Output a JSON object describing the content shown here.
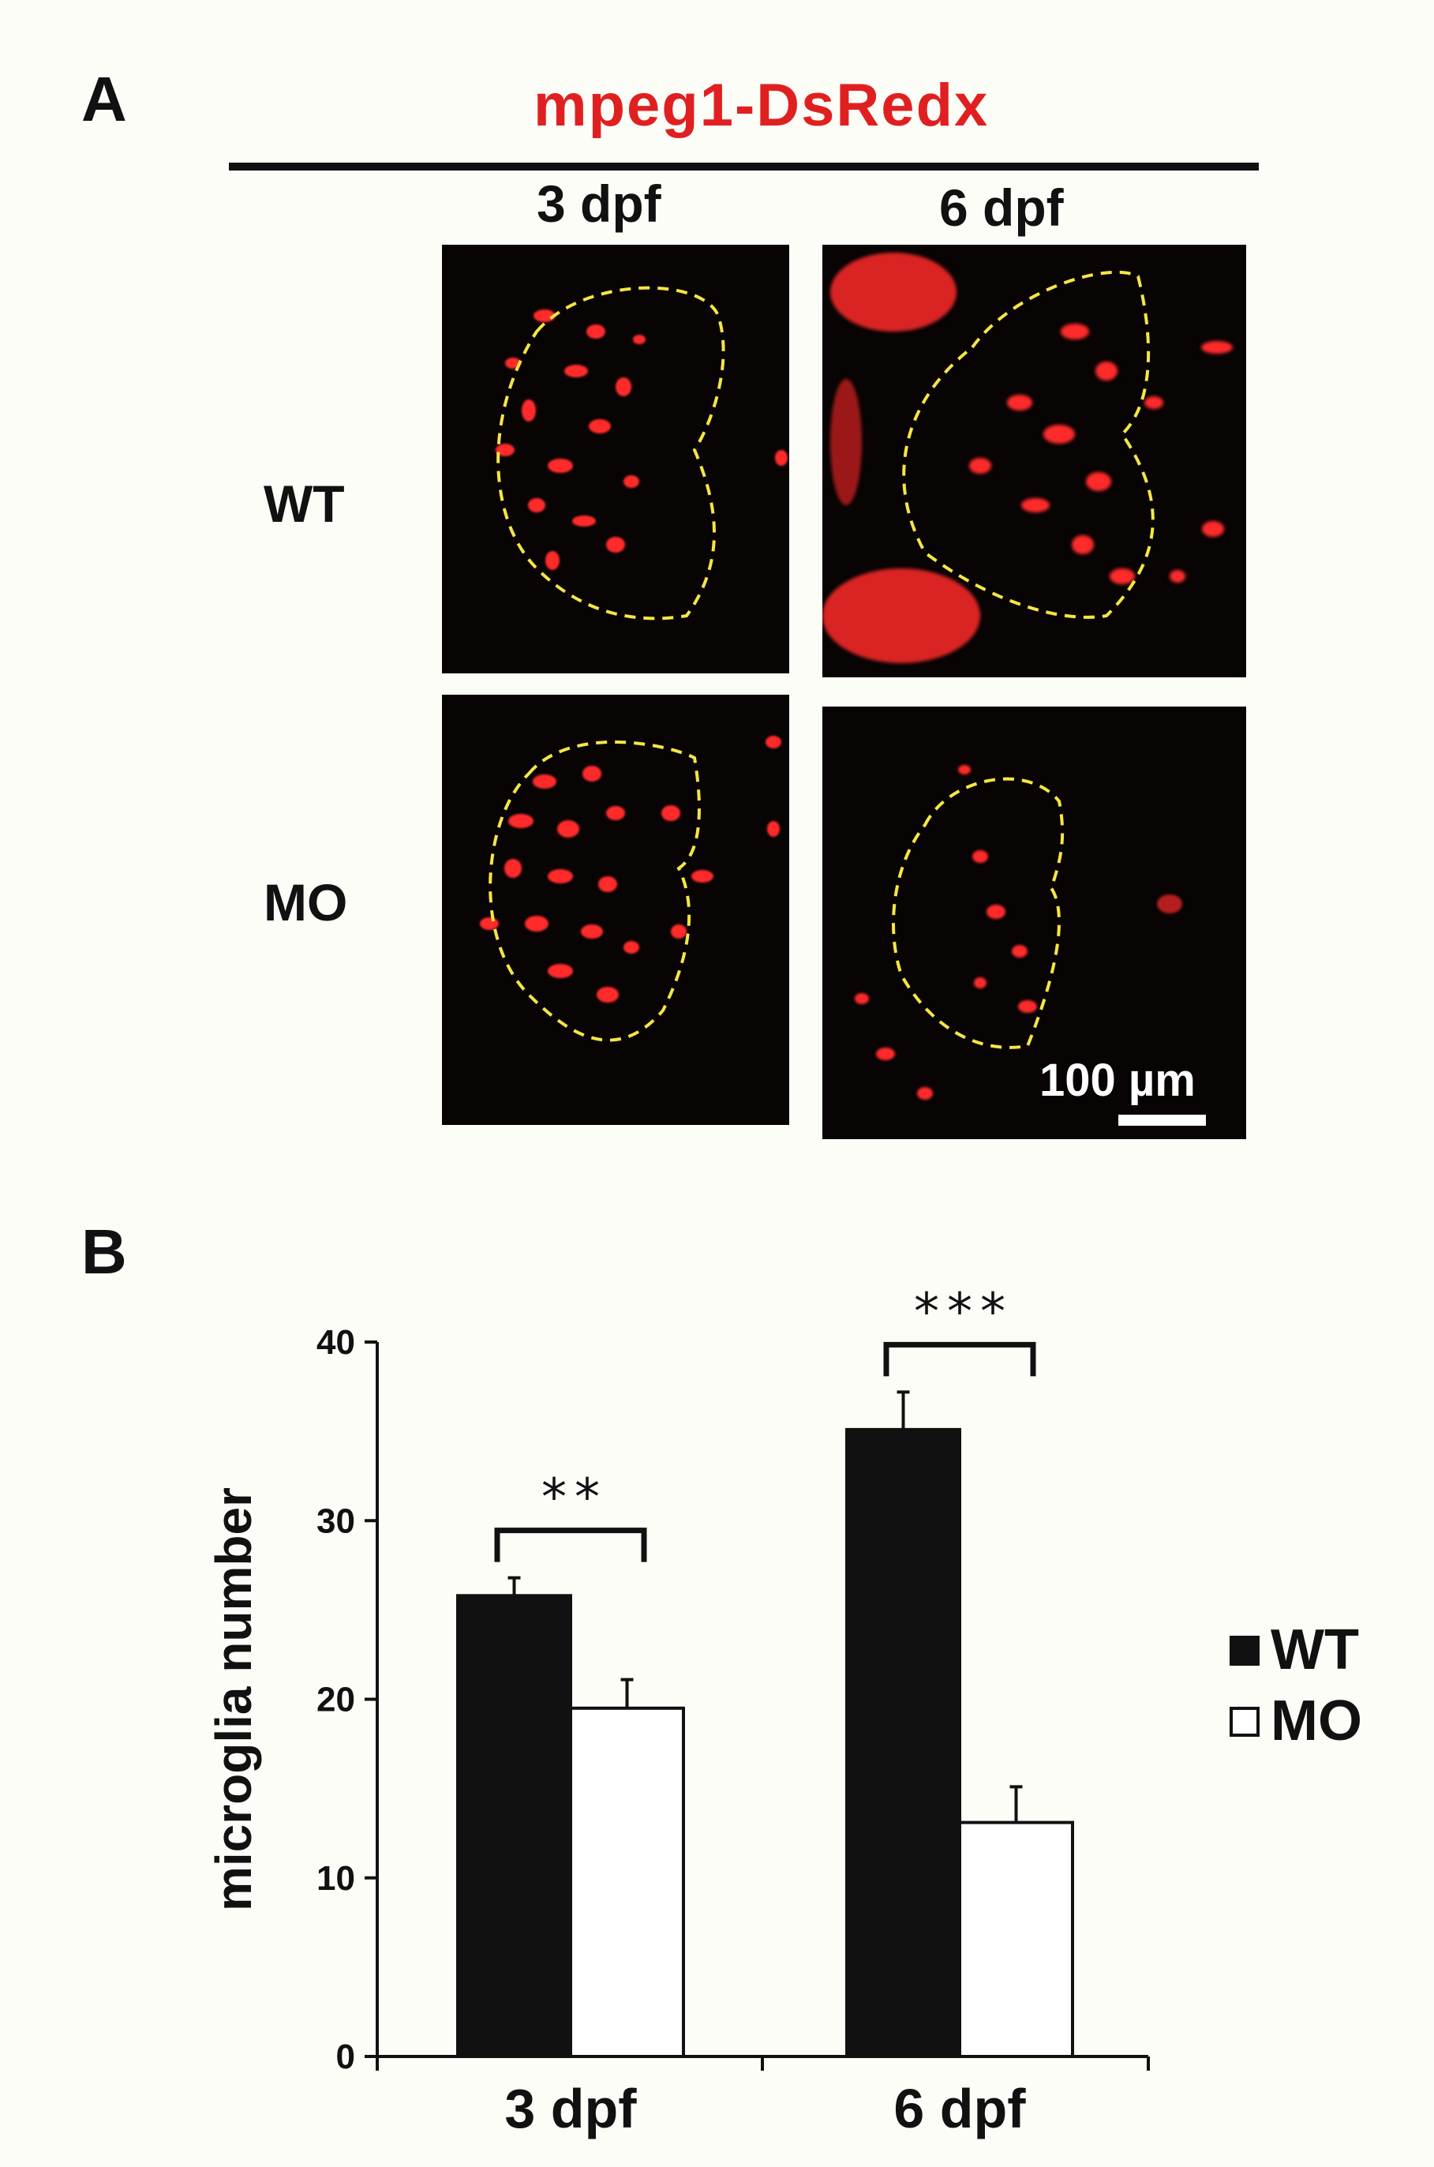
{
  "panel_a": {
    "letter": "A",
    "title": "mpeg1-DsRedx",
    "columns": [
      "3 dpf",
      "6 dpf"
    ],
    "rows": [
      "WT",
      "MO"
    ],
    "scale_bar": "100 µm",
    "colors": {
      "title": "#e02020",
      "signal": "#ff2a2a",
      "outline": "#f5e642"
    }
  },
  "panel_b": {
    "letter": "B"
  },
  "chart_data": {
    "type": "bar",
    "categories": [
      "3 dpf",
      "6 dpf"
    ],
    "series": [
      {
        "name": "WT",
        "values": [
          25.8,
          35.1
        ],
        "errors": [
          1.0,
          2.1
        ],
        "color": "#111111"
      },
      {
        "name": "MO",
        "values": [
          19.5,
          13.1
        ],
        "errors": [
          1.6,
          2.0
        ],
        "color": "#ffffff"
      }
    ],
    "significance": [
      "**",
      "***"
    ],
    "ylabel": "microglia number",
    "xlabel": "",
    "ylim": [
      0,
      40
    ],
    "yticks": [
      0,
      10,
      20,
      30,
      40
    ],
    "legend_position": "right",
    "grid": false
  }
}
